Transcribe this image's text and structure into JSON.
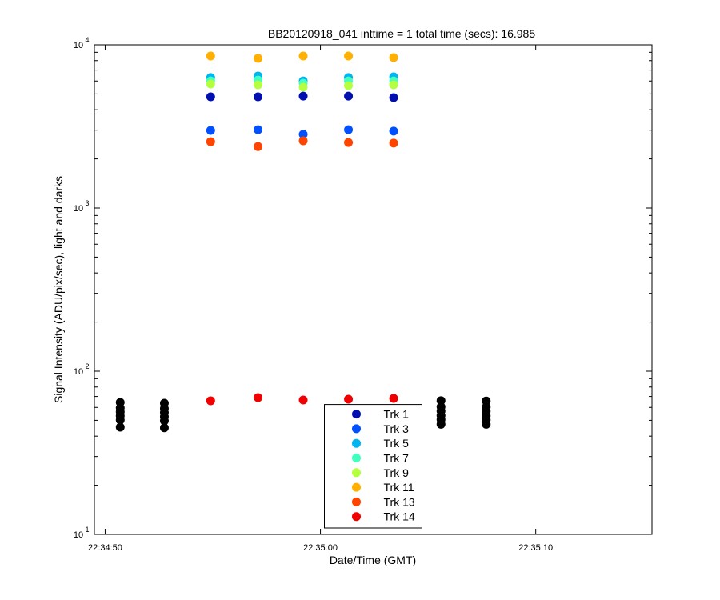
{
  "chart_data": {
    "type": "scatter",
    "title": "BB20120918_041 inttime = 1 total time (secs): 16.985",
    "x_label": "Date/Time (GMT)",
    "y_label": "Signal Intensity (ADU/pix/sec), light and darks",
    "log_y": true,
    "legend": "bottom-center",
    "xlim": [
      81289.5,
      81315.4
    ],
    "xticks": [
      {
        "value": 81290,
        "label": "22:34:50"
      },
      {
        "value": 81300,
        "label": "22:35:00"
      },
      {
        "value": 81310,
        "label": "22:35:10"
      }
    ],
    "ylim": [
      10,
      10000
    ],
    "yticks": [
      {
        "value": 10,
        "label": "10",
        "exponent": "1"
      },
      {
        "value": 100,
        "label": "10",
        "exponent": "2"
      },
      {
        "value": 1000,
        "label": "10",
        "exponent": "3"
      },
      {
        "value": 10000,
        "label": "10",
        "exponent": "4"
      }
    ],
    "series": [
      {
        "color": "#000000",
        "x": [
          81290.7,
          81290.7,
          81290.7,
          81290.7,
          81290.7,
          81290.7,
          81292.75,
          81292.75,
          81292.75,
          81292.75,
          81292.75,
          81292.75,
          81305.6,
          81305.6,
          81305.6,
          81305.6,
          81305.6,
          81305.6,
          81307.7,
          81307.7,
          81307.7,
          81307.7,
          81307.7,
          81307.7
        ],
        "values": [
          64.4,
          59.6,
          56.3,
          53.2,
          50.2,
          45.4,
          63.7,
          59,
          55.8,
          52.7,
          49.7,
          45,
          66,
          60.5,
          57,
          53.5,
          50.5,
          47.3,
          65.7,
          60.3,
          56.8,
          53.3,
          50.3,
          47.3
        ]
      },
      {
        "name": "Trk 1",
        "color": "#0010b0",
        "x": [
          81294.9,
          81297.1,
          81299.2,
          81301.3,
          81303.4
        ],
        "values": [
          4800,
          4800,
          4850,
          4850,
          4750
        ]
      },
      {
        "name": "Trk 3",
        "color": "#0050ff",
        "x": [
          81294.9,
          81297.1,
          81299.2,
          81301.3,
          81303.4
        ],
        "values": [
          2990,
          3020,
          2830,
          3020,
          2960
        ]
      },
      {
        "name": "Trk 5",
        "color": "#00b4f0",
        "x": [
          81294.9,
          81297.1,
          81299.2,
          81301.3,
          81303.4
        ],
        "values": [
          6300,
          6440,
          6010,
          6300,
          6370
        ]
      },
      {
        "name": "Trk 7",
        "color": "#40ffc0",
        "x": [
          81294.9,
          81297.1,
          81299.2,
          81301.3,
          81303.4
        ],
        "values": [
          6010,
          6080,
          5810,
          6010,
          6010
        ]
      },
      {
        "name": "Trk 9",
        "color": "#b4ff40",
        "x": [
          81294.9,
          81297.1,
          81299.2,
          81301.3,
          81303.4
        ],
        "values": [
          5750,
          5690,
          5500,
          5620,
          5690
        ]
      },
      {
        "name": "Trk 11",
        "color": "#ffb000",
        "x": [
          81294.9,
          81297.1,
          81299.2,
          81301.3,
          81303.4
        ],
        "values": [
          8540,
          8260,
          8540,
          8540,
          8350
        ]
      },
      {
        "name": "Trk 13",
        "color": "#ff4400",
        "x": [
          81294.9,
          81297.1,
          81299.2,
          81301.3,
          81303.4
        ],
        "values": [
          2550,
          2380,
          2580,
          2520,
          2500
        ]
      },
      {
        "name": "Trk 14",
        "color": "#f00000",
        "x": [
          81294.9,
          81297.1,
          81299.2,
          81301.3,
          81303.4
        ],
        "values": [
          65.9,
          68.9,
          66.6,
          67.4,
          68.1
        ]
      }
    ]
  }
}
